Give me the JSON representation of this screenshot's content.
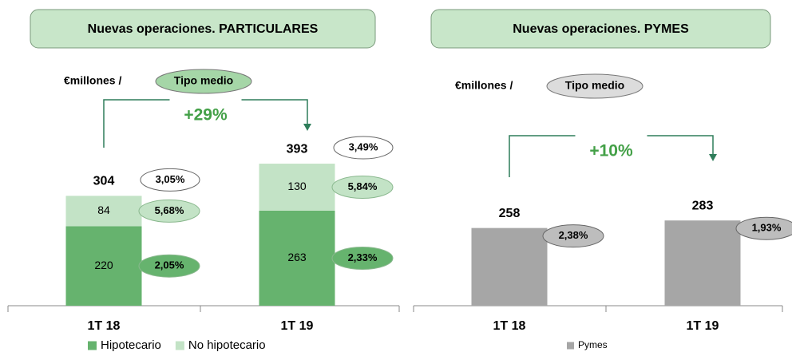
{
  "chart_data": [
    {
      "type": "bar",
      "stacked": true,
      "title": "Nuevas operaciones. PARTICULARES",
      "subtitle": "€millones /",
      "rate_title": "Tipo medio",
      "growth": "+29%",
      "categories": [
        "1T 18",
        "1T 19"
      ],
      "ylim": [
        0,
        625
      ],
      "totals": [
        304,
        393
      ],
      "total_rate_labels": [
        "3,05%",
        "3,49%"
      ],
      "series": [
        {
          "name": "Hipotecario",
          "color": "#66b36e",
          "values": [
            220,
            263
          ],
          "rate_labels": [
            "2,05%",
            "2,33%"
          ]
        },
        {
          "name": "No hipotecario",
          "color": "#c3e3c6",
          "values": [
            84,
            130
          ],
          "rate_labels": [
            "5,68%",
            "5,84%"
          ]
        }
      ]
    },
    {
      "type": "bar",
      "stacked": false,
      "title": "Nuevas operaciones. PYMES",
      "subtitle": "€millones /",
      "rate_title": "Tipo medio",
      "growth": "+10%",
      "categories": [
        "1T 18",
        "1T 19"
      ],
      "ylim": [
        0,
        750
      ],
      "series": [
        {
          "name": "Pymes",
          "color": "#a6a6a6",
          "values": [
            258,
            283
          ],
          "rate_labels": [
            "2,38%",
            "1,93%"
          ]
        }
      ]
    }
  ]
}
